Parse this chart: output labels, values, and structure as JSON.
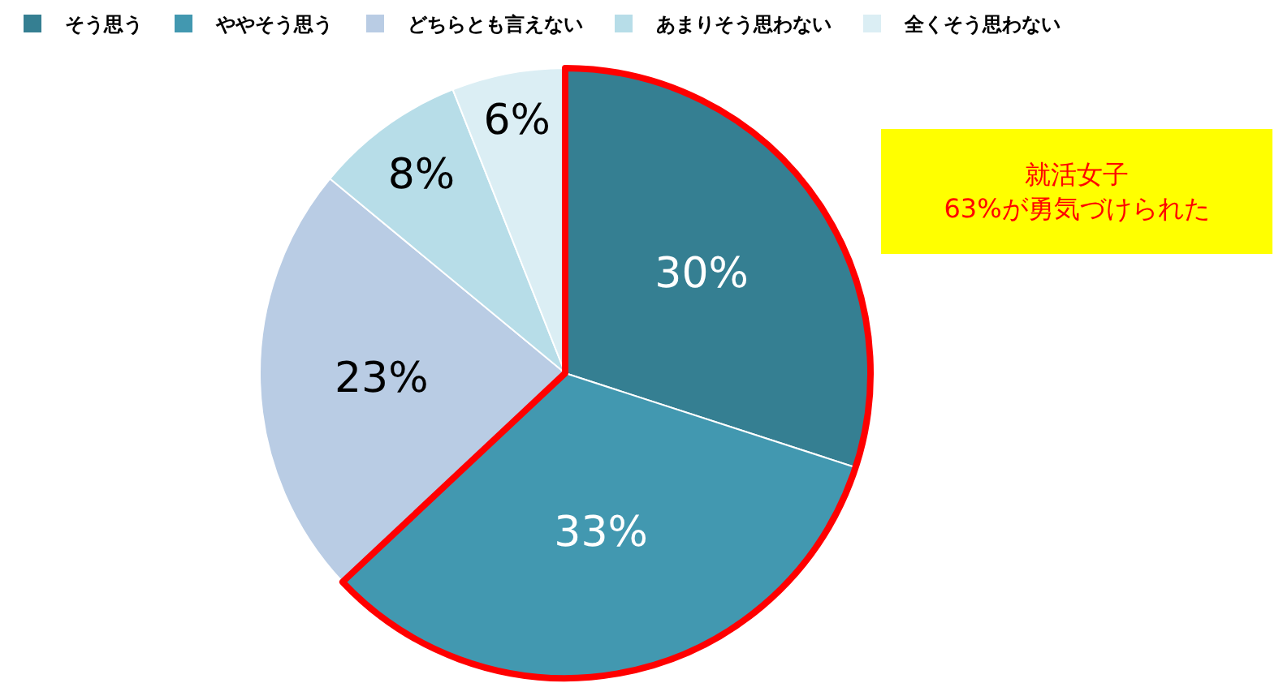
{
  "chart_data": {
    "type": "pie",
    "categories": [
      "そう思う",
      "ややそう思う",
      "どちらとも言えない",
      "あまりそう思わない",
      "全くそう思わない"
    ],
    "values": [
      30,
      33,
      23,
      8,
      6
    ],
    "colors": [
      "#357f92",
      "#4298b0",
      "#b9cce4",
      "#b7dde8",
      "#dbeef4"
    ],
    "data_labels": true,
    "value_labels": [
      "30%",
      "33%",
      "23%",
      "8%",
      "6%"
    ],
    "annotations": [
      "就活女子\n63%が勇気づけられた"
    ],
    "legend": "top"
  }
}
